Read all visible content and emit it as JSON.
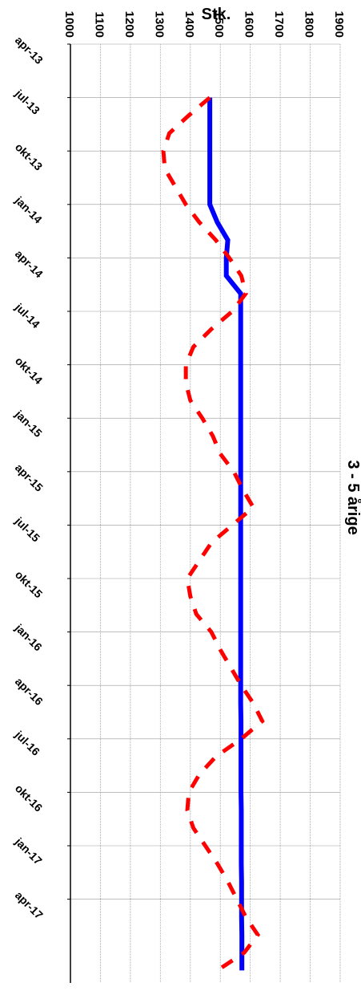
{
  "chart_data": {
    "type": "line",
    "title": "3 - 5 årige",
    "y_label": "Stk.",
    "categories": [
      "apr-13",
      null,
      null,
      "jul-13",
      null,
      null,
      "okt-13",
      null,
      null,
      "jan-14",
      null,
      null,
      "apr-14",
      null,
      null,
      "jul-14",
      null,
      null,
      "okt-14",
      null,
      null,
      "jan-15",
      null,
      null,
      "apr-15",
      null,
      null,
      "jul-15",
      null,
      null,
      "okt-15",
      null,
      null,
      "jan-16",
      null,
      null,
      "apr-16",
      null,
      null,
      "jul-16",
      null,
      null,
      "okt-16",
      null,
      null,
      "jan-17",
      null,
      null,
      "apr-17",
      null,
      null,
      null,
      null
    ],
    "series": [
      {
        "color": "#0000ff",
        "dash": false,
        "values": [
          null,
          null,
          null,
          1465,
          1465,
          1465,
          1465,
          1465,
          1465,
          1465,
          1490,
          1525,
          1520,
          1520,
          1568,
          1568,
          1568,
          1568,
          1568,
          1568,
          1568,
          1568,
          1568,
          1568,
          1568,
          1568,
          1568,
          1568,
          1568,
          1568,
          1568,
          1568,
          1568,
          1568,
          1568,
          1568,
          1568,
          1568,
          1569,
          1569,
          1569,
          1569,
          1569,
          1570,
          1570,
          1570,
          1570,
          1571,
          1571,
          1571,
          1572,
          1572,
          1572
        ]
      },
      {
        "color": "#ff0000",
        "dash": true,
        "values": [
          null,
          null,
          null,
          1465,
          1395,
          1330,
          1310,
          1315,
          1350,
          1385,
          1430,
          1485,
          1530,
          1570,
          1585,
          1540,
          1470,
          1410,
          1385,
          1385,
          1400,
          1440,
          1475,
          1500,
          1545,
          1575,
          1610,
          1540,
          1470,
          1430,
          1390,
          1400,
          1420,
          1470,
          1500,
          1535,
          1570,
          1610,
          1640,
          1570,
          1485,
          1430,
          1395,
          1390,
          1410,
          1450,
          1490,
          1525,
          1555,
          1585,
          1625,
          1580,
          1490
        ]
      }
    ],
    "ylim": [
      1000,
      1900
    ],
    "yticks": [
      1000,
      1100,
      1200,
      1300,
      1400,
      1500,
      1600,
      1700,
      1800,
      1900
    ],
    "grid": true
  }
}
